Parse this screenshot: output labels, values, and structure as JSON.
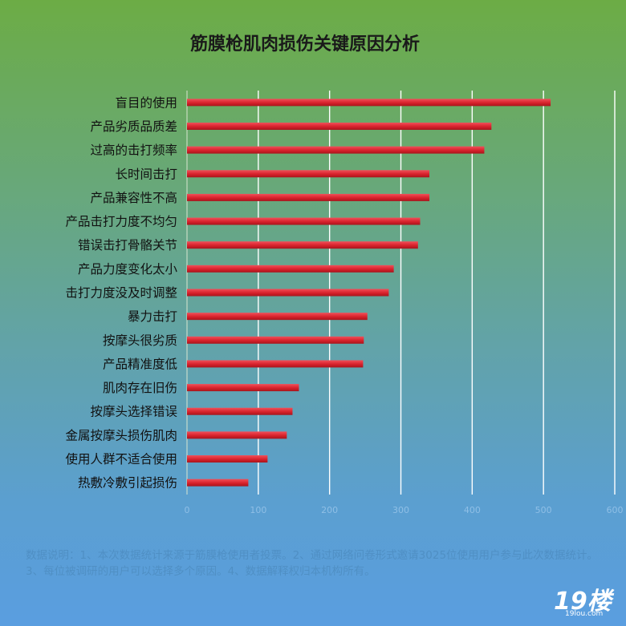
{
  "chart_data": {
    "type": "bar",
    "orientation": "horizontal",
    "title": "筋膜枪肌肉损伤关键原因分析",
    "categories": [
      "盲目的使用",
      "产品劣质品质差",
      "过高的击打频率",
      "长时间击打",
      "产品兼容性不高",
      "产品击打力度不均匀",
      "错误击打骨骼关节",
      "产品力度变化太小",
      "击打力度没及时调整",
      "暴力击打",
      "按摩头很劣质",
      "产品精准度低",
      "肌肉存在旧伤",
      "按摩头选择错误",
      "金属按摩头损伤肌肉",
      "使用人群不适合使用",
      "热敷冷敷引起损伤"
    ],
    "values": [
      510,
      427,
      417,
      340,
      340,
      327,
      324,
      290,
      283,
      253,
      248,
      247,
      157,
      148,
      140,
      113,
      86
    ],
    "xlim": [
      0,
      600
    ],
    "ticks": [
      0,
      100,
      200,
      300,
      400,
      500,
      600
    ],
    "grid": true,
    "bar_color": "#e0303a",
    "grid_color": "#ffffff"
  },
  "note": "数据说明：1、本次数据统计来源于筋膜枪使用者投票。2、通过网络问卷形式邀请3025位使用用户参与此次数据统计。3、每位被调研的用户可以选择多个原因。4、数据解释权归本机构所有。",
  "watermark": {
    "main": "19楼",
    "sub": "19lou.com"
  }
}
